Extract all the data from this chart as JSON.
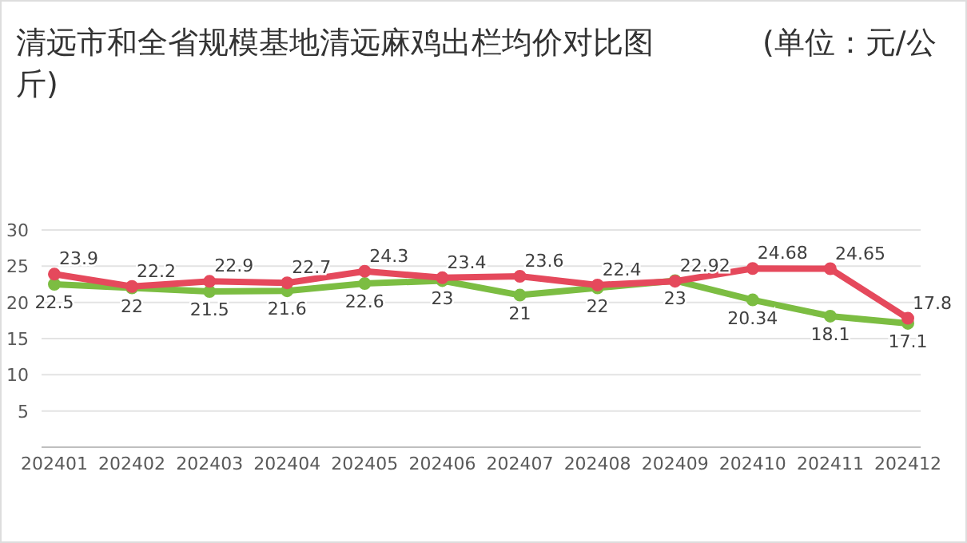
{
  "chart_data": {
    "type": "line",
    "title": "清远市和全省规模基地清远麻鸡出栏均价对比图",
    "subtitle": "(单位：元/公斤)",
    "categories": [
      "202401",
      "202402",
      "202403",
      "202404",
      "202405",
      "202406",
      "202407",
      "202408",
      "202409",
      "202410",
      "202411",
      "202412"
    ],
    "series": [
      {
        "color": "#7cbd42",
        "values": [
          22.5,
          22,
          21.5,
          21.6,
          22.6,
          23,
          21,
          22,
          23,
          20.34,
          18.1,
          17.1
        ]
      },
      {
        "color": "#e5495c",
        "values": [
          23.9,
          22.2,
          22.9,
          22.7,
          24.3,
          23.4,
          23.6,
          22.4,
          22.92,
          24.68,
          24.65,
          17.8
        ]
      }
    ],
    "ylim": [
      0,
      30
    ],
    "yticks": [
      {
        "value": 0,
        "label": null
      },
      5,
      10,
      15,
      20,
      25,
      30
    ],
    "grid": "y",
    "data_labels": true,
    "marker": "circle",
    "line_style": "solid"
  }
}
